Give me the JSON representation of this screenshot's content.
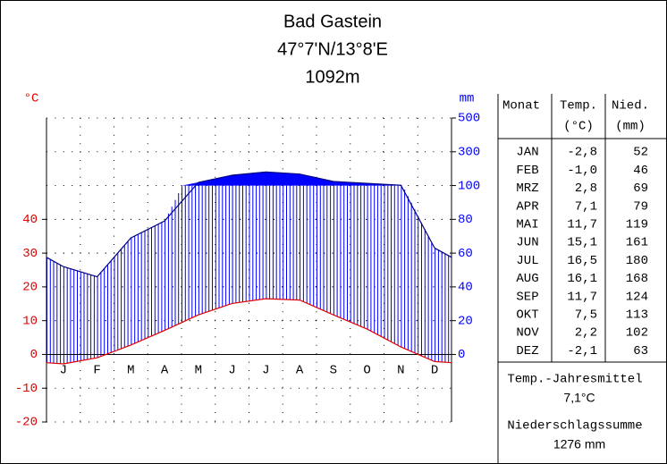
{
  "chart_data": {
    "type": "climate",
    "title": "Bad Gastein",
    "subtitle": "47°7'N/13°8'E",
    "elevation": "1092m",
    "y_label": "°C",
    "y2_label": "mm",
    "categories": [
      "J",
      "F",
      "M",
      "A",
      "M",
      "J",
      "J",
      "A",
      "S",
      "O",
      "N",
      "D"
    ],
    "series": [
      {
        "name": "Temp.",
        "color": "#e00000",
        "values": [
          -2.8,
          -1.0,
          2.8,
          7.1,
          11.7,
          15.1,
          16.5,
          16.1,
          11.7,
          7.5,
          2.2,
          -2.1
        ],
        "value_labels": [
          "-2,8",
          "-1,0",
          "2,8",
          "7,1",
          "11,7",
          "15,1",
          "16,5",
          "16,1",
          "11,7",
          "7,5",
          "2,2",
          "-2,1"
        ]
      },
      {
        "name": "Nied.",
        "color": "#000080",
        "fill": "#0000ff",
        "axis": "y2",
        "values": [
          52,
          46,
          69,
          79,
          119,
          161,
          180,
          168,
          124,
          113,
          102,
          63
        ]
      }
    ],
    "ylim": [
      -20,
      70
    ],
    "yticks": [
      -20,
      -10,
      0,
      10,
      20,
      30,
      40
    ],
    "y2lim": [
      0,
      500
    ],
    "y2ticks": [
      0,
      20,
      40,
      60,
      80,
      100,
      300,
      500
    ],
    "y2_compress_above": 100,
    "y2_compress_factor": 10,
    "grid": "dotted"
  },
  "table": {
    "header": "Monat",
    "units": [
      "(°C)",
      "(mm)"
    ],
    "months": [
      "JAN",
      "FEB",
      "MRZ",
      "APR",
      "MAI",
      "JUN",
      "JUL",
      "AUG",
      "SEP",
      "OKT",
      "NOV",
      "DEZ"
    ],
    "annual_mean_label": "Temp.-Jahresmittel",
    "annual_mean": "7,1°C",
    "annual_sum_label": "Niederschlagssumme",
    "annual_sum": "1276 mm"
  }
}
